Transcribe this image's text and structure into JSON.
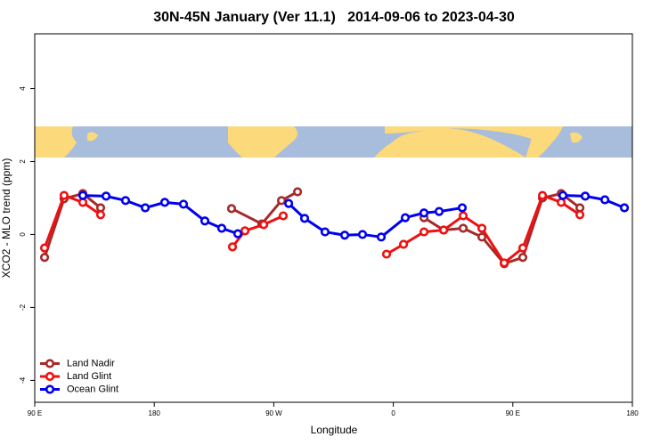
{
  "chart_data": {
    "type": "line",
    "title": "30N-45N January (Ver 11.1)   2014-09-06 to 2023-04-30",
    "x_label": "Longitude",
    "y_label": "XCO2 - MLO trend (ppm)",
    "xlim": [
      90,
      540
    ],
    "xticks": [
      {
        "value": 90,
        "label": "90 E"
      },
      180,
      {
        "value": 270,
        "label": "90 W"
      },
      {
        "value": 360,
        "label": "0"
      },
      {
        "value": 450,
        "label": "90 E"
      },
      {
        "value": 540,
        "label": "180"
      }
    ],
    "ylim": [
      -4.6,
      5.5
    ],
    "yticks": [
      -4,
      -2,
      0,
      2,
      4
    ],
    "legend": "bottom-left",
    "series": [
      {
        "name": "Land Nadir",
        "color": "#a52a2a",
        "x": [
          97.4,
          112.1,
          126.2,
          139.6,
          null,
          238.2,
          261.0,
          275.8,
          287.9,
          null,
          383.1,
          397.9,
          412.6,
          426.7,
          443.5,
          457.5,
          472.3,
          486.4,
          500.5
        ],
        "values": [
          -0.63,
          0.98,
          1.12,
          0.73,
          null,
          0.71,
          0.29,
          0.93,
          1.17,
          null,
          0.46,
          0.12,
          0.17,
          -0.07,
          -0.8,
          -0.63,
          1.0,
          1.12,
          0.73
        ]
      },
      {
        "name": "Land Glint",
        "color": "#ee1111",
        "x": [
          97.4,
          112.1,
          126.2,
          139.6,
          null,
          238.9,
          248.3,
          262.4,
          277.1,
          null,
          354.9,
          367.7,
          383.1,
          397.9,
          412.6,
          426.7,
          443.5,
          457.5,
          472.3,
          486.4,
          500.5
        ],
        "values": [
          -0.37,
          1.07,
          0.88,
          0.54,
          null,
          -0.34,
          0.1,
          0.27,
          0.51,
          null,
          -0.54,
          -0.27,
          0.07,
          0.12,
          0.51,
          0.17,
          -0.78,
          -0.37,
          1.07,
          0.88,
          0.54
        ]
      },
      {
        "name": "Ocean Glint",
        "color": "#0000ee",
        "x": [
          126.2,
          143.7,
          158.4,
          173.2,
          187.9,
          202.0,
          218.1,
          230.8,
          242.9,
          null,
          281.2,
          293.2,
          308.6,
          323.4,
          336.8,
          350.9,
          369.0,
          383.1,
          394.5,
          411.9,
          null,
          487.7,
          504.5,
          519.3,
          534.0
        ],
        "values": [
          1.07,
          1.05,
          0.93,
          0.73,
          0.88,
          0.83,
          0.37,
          0.17,
          0.02,
          null,
          0.85,
          0.44,
          0.07,
          -0.02,
          0,
          -0.07,
          0.46,
          0.59,
          0.63,
          0.73,
          null,
          1.07,
          1.05,
          0.95,
          0.73
        ]
      }
    ]
  }
}
